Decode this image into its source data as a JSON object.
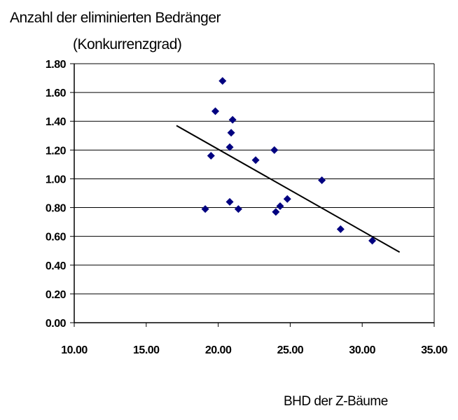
{
  "chart_data": {
    "type": "scatter",
    "title": "",
    "ylabel_lines": [
      "Anzahl der eliminierten Bedränger",
      "(Konkurrenzgrad)"
    ],
    "xlabel": "BHD der Z-Bäume",
    "xlim": [
      10,
      35
    ],
    "ylim": [
      0,
      1.8
    ],
    "x_ticks": [
      "10.00",
      "15.00",
      "20.00",
      "25.00",
      "30.00",
      "35.00"
    ],
    "y_ticks": [
      "0.00",
      "0.20",
      "0.40",
      "0.60",
      "0.80",
      "1.00",
      "1.20",
      "1.40",
      "1.60",
      "1.80"
    ],
    "grid": "horizontal",
    "marker": "diamond",
    "marker_color": "#000080",
    "points": [
      {
        "x": 19.1,
        "y": 0.79
      },
      {
        "x": 19.5,
        "y": 1.16
      },
      {
        "x": 19.8,
        "y": 1.47
      },
      {
        "x": 20.3,
        "y": 1.68
      },
      {
        "x": 20.8,
        "y": 0.84
      },
      {
        "x": 20.8,
        "y": 1.22
      },
      {
        "x": 20.9,
        "y": 1.32
      },
      {
        "x": 21.0,
        "y": 1.41
      },
      {
        "x": 21.4,
        "y": 0.79
      },
      {
        "x": 22.6,
        "y": 1.13
      },
      {
        "x": 23.9,
        "y": 1.2
      },
      {
        "x": 24.0,
        "y": 0.77
      },
      {
        "x": 24.3,
        "y": 0.81
      },
      {
        "x": 24.8,
        "y": 0.86
      },
      {
        "x": 27.2,
        "y": 0.99
      },
      {
        "x": 28.5,
        "y": 0.65
      },
      {
        "x": 30.7,
        "y": 0.57
      }
    ],
    "trendline": {
      "x": [
        17.1,
        32.6
      ],
      "y": [
        1.37,
        0.49
      ],
      "color": "#000000"
    }
  }
}
